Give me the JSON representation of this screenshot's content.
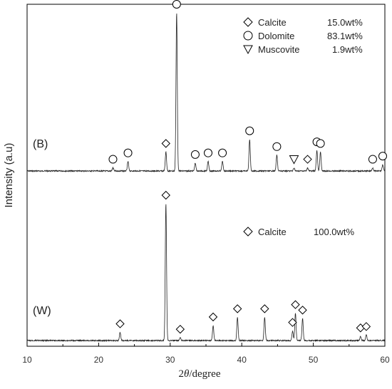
{
  "chart_data": {
    "type": "line",
    "xlabel_prefix": "2",
    "xlabel_theta": "θ",
    "xlabel_suffix": "/degree",
    "ylabel": "Intensity (a.u)",
    "xlim": [
      10,
      60
    ],
    "xticks": [
      "10",
      "20",
      "30",
      "40",
      "50",
      "60"
    ],
    "panels": [
      {
        "label": "(B)",
        "legend": [
          {
            "marker": "diamond",
            "name": "Calcite",
            "value": "15.0wt%"
          },
          {
            "marker": "circle",
            "name": "Dolomite",
            "value": "83.1wt%"
          },
          {
            "marker": "triangle-down",
            "name": "Muscovite",
            "value": "1.9wt%"
          }
        ],
        "peaks": [
          {
            "x": 22.0,
            "h": 0.02,
            "marker": "circle"
          },
          {
            "x": 24.1,
            "h": 0.06,
            "marker": "circle"
          },
          {
            "x": 29.4,
            "h": 0.12,
            "marker": "diamond"
          },
          {
            "x": 30.9,
            "h": 1.0,
            "marker": "circle"
          },
          {
            "x": 33.5,
            "h": 0.05,
            "marker": "circle"
          },
          {
            "x": 35.3,
            "h": 0.06,
            "marker": "circle"
          },
          {
            "x": 37.3,
            "h": 0.06,
            "marker": "circle"
          },
          {
            "x": 41.1,
            "h": 0.2,
            "marker": "circle"
          },
          {
            "x": 44.9,
            "h": 0.1,
            "marker": "circle"
          },
          {
            "x": 47.3,
            "h": 0.02,
            "marker": "triangle-down"
          },
          {
            "x": 49.2,
            "h": 0.02,
            "marker": "diamond"
          },
          {
            "x": 50.5,
            "h": 0.13,
            "marker": "circle"
          },
          {
            "x": 51.0,
            "h": 0.12,
            "marker": "circle"
          },
          {
            "x": 58.3,
            "h": 0.02,
            "marker": "circle"
          },
          {
            "x": 59.7,
            "h": 0.04,
            "marker": "circle"
          }
        ]
      },
      {
        "label": "(W)",
        "legend": [
          {
            "marker": "diamond",
            "name": "Calcite",
            "value": "100.0wt%"
          }
        ],
        "peaks": [
          {
            "x": 23.0,
            "h": 0.06,
            "marker": "diamond"
          },
          {
            "x": 29.4,
            "h": 1.0,
            "marker": "diamond"
          },
          {
            "x": 31.4,
            "h": 0.02,
            "marker": "diamond"
          },
          {
            "x": 36.0,
            "h": 0.11,
            "marker": "diamond"
          },
          {
            "x": 39.4,
            "h": 0.17,
            "marker": "diamond"
          },
          {
            "x": 43.2,
            "h": 0.17,
            "marker": "diamond"
          },
          {
            "x": 47.1,
            "h": 0.07,
            "marker": "diamond"
          },
          {
            "x": 47.5,
            "h": 0.2,
            "marker": "diamond"
          },
          {
            "x": 48.5,
            "h": 0.16,
            "marker": "diamond"
          },
          {
            "x": 56.6,
            "h": 0.03,
            "marker": "diamond"
          },
          {
            "x": 57.4,
            "h": 0.04,
            "marker": "diamond"
          }
        ]
      }
    ]
  }
}
